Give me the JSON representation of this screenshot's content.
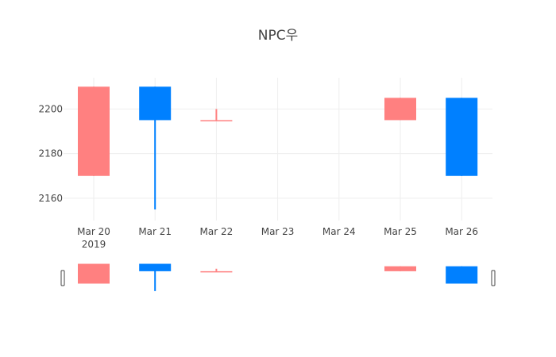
{
  "chart_data": {
    "type": "candlestick",
    "title": "NPC우",
    "x_categories": [
      "Mar 20",
      "Mar 21",
      "Mar 22",
      "Mar 23",
      "Mar 24",
      "Mar 25",
      "Mar 26"
    ],
    "x_year_label": "2019",
    "y_ticks": [
      2160,
      2180,
      2200
    ],
    "ylim": [
      2150,
      2214
    ],
    "increasing_color": "#ff8080",
    "decreasing_color": "#0080ff",
    "series": [
      {
        "x": "Mar 20",
        "open": 2170,
        "high": 2210,
        "low": 2170,
        "close": 2210
      },
      {
        "x": "Mar 21",
        "open": 2210,
        "high": 2210,
        "low": 2155,
        "close": 2195
      },
      {
        "x": "Mar 22",
        "open": 2195,
        "high": 2200,
        "low": 2195,
        "close": 2195
      },
      {
        "x": "Mar 25",
        "open": 2195,
        "high": 2205,
        "low": 2195,
        "close": 2205
      },
      {
        "x": "Mar 26",
        "open": 2205,
        "high": 2205,
        "low": 2170,
        "close": 2170
      }
    ],
    "grid": true,
    "range_slider": true
  }
}
